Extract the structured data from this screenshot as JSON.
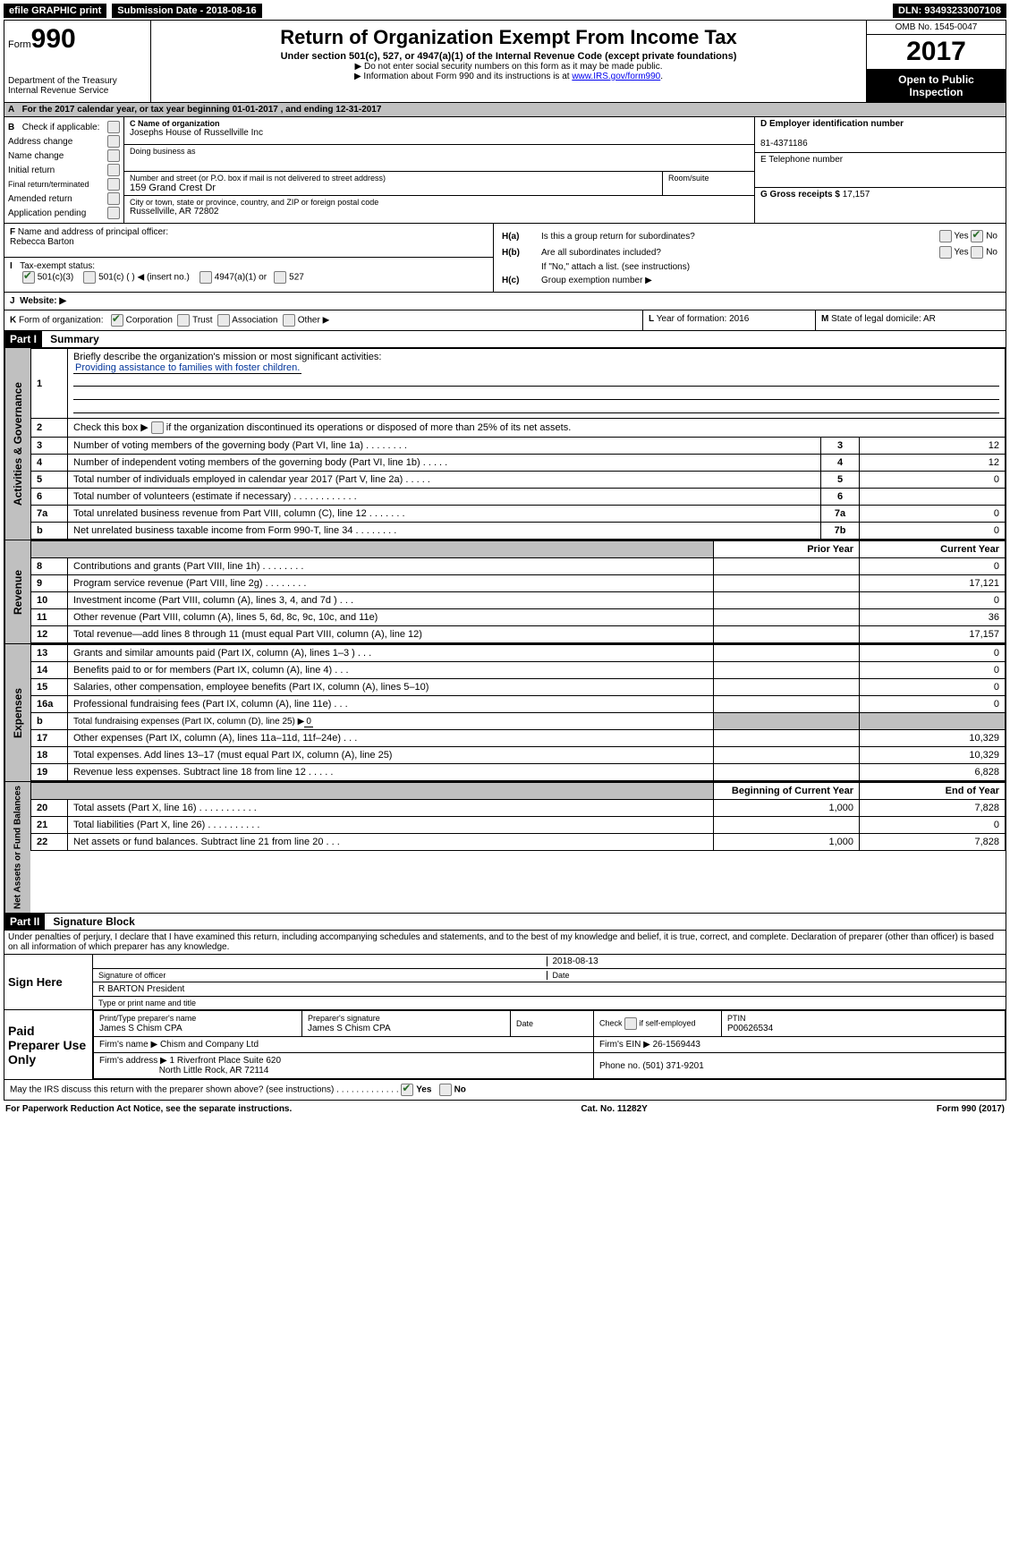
{
  "topbar": {
    "efile": "efile GRAPHIC print",
    "submission_label": "Submission Date - ",
    "submission_date": "2018-08-16",
    "dln_label": "DLN: ",
    "dln": "93493233007108"
  },
  "header": {
    "form_prefix": "Form",
    "form_number": "990",
    "dept1": "Department of the Treasury",
    "dept2": "Internal Revenue Service",
    "title": "Return of Organization Exempt From Income Tax",
    "subtitle": "Under section 501(c), 527, or 4947(a)(1) of the Internal Revenue Code (except private foundations)",
    "note1": "Do not enter social security numbers on this form as it may be made public.",
    "note2_pre": "Information about Form 990 and its instructions is at ",
    "note2_link": "www.IRS.gov/form990",
    "note2_post": ".",
    "omb": "OMB No. 1545-0047",
    "year": "2017",
    "inspection": "Open to Public Inspection"
  },
  "row_a": {
    "label": "A",
    "text_pre": "For the 2017 calendar year, or tax year beginning ",
    "begin": "01-01-2017",
    "text_mid": " , and ending ",
    "end": "12-31-2017"
  },
  "col_b": {
    "label": "B",
    "check_label": "Check if applicable:",
    "items": [
      "Address change",
      "Name change",
      "Initial return",
      "Final return/terminated",
      "Amended return",
      "Application pending"
    ]
  },
  "col_c": {
    "name_label": "C Name of organization",
    "name": "Josephs House of Russellville Inc",
    "dba_label": "Doing business as",
    "dba": "",
    "addr_label": "Number and street (or P.O. box if mail is not delivered to street address)",
    "room_label": "Room/suite",
    "addr": "159 Grand Crest Dr",
    "city_label": "City or town, state or province, country, and ZIP or foreign postal code",
    "city": "Russellville, AR  72802"
  },
  "col_d": {
    "d_label": "D Employer identification number",
    "ein": "81-4371186",
    "e_label": "E Telephone number",
    "phone": "",
    "g_label": "G Gross receipts $ ",
    "g_val": "17,157"
  },
  "row_f": {
    "label": "F",
    "text": "Name and address of principal officer:",
    "name": "Rebecca Barton"
  },
  "row_h": {
    "ha_label": "H(a)",
    "ha_text": "Is this a group return for subordinates?",
    "ha_yes": "Yes",
    "ha_no": "No",
    "hb_label": "H(b)",
    "hb_text": "Are all subordinates included?",
    "hb_yes": "Yes",
    "hb_no": "No",
    "hb_note": "If \"No,\" attach a list. (see instructions)",
    "hc_label": "H(c)",
    "hc_text": "Group exemption number ▶"
  },
  "row_i": {
    "label": "I",
    "text": "Tax-exempt status:",
    "opt1": "501(c)(3)",
    "opt2": "501(c) (    ) ◀ (insert no.)",
    "opt3": "4947(a)(1) or",
    "opt4": "527"
  },
  "row_j": {
    "label": "J",
    "text": "Website: ▶"
  },
  "row_k": {
    "label": "K",
    "text": "Form of organization:",
    "opts": [
      "Corporation",
      "Trust",
      "Association",
      "Other ▶"
    ],
    "l_label": "L",
    "l_text": "Year of formation: ",
    "l_val": "2016",
    "m_label": "M",
    "m_text": "State of legal domicile: ",
    "m_val": "AR"
  },
  "part1": {
    "header": "Part I",
    "title": "Summary"
  },
  "governance": {
    "vert": "Activities & Governance",
    "line1_num": "1",
    "line1": "Briefly describe the organization's mission or most significant activities:",
    "mission": "Providing assistance to families with foster children.",
    "line2_num": "2",
    "line2": "Check this box ▶        if the organization discontinued its operations or disposed of more than 25% of its net assets.",
    "line3_num": "3",
    "line3": "Number of voting members of the governing body (Part VI, line 1a)   .   .   .   .   .   .   .   .",
    "line3_col": "3",
    "line3_val": "12",
    "line4_num": "4",
    "line4": "Number of independent voting members of the governing body (Part VI, line 1b)   .   .   .   .   .",
    "line4_col": "4",
    "line4_val": "12",
    "line5_num": "5",
    "line5": "Total number of individuals employed in calendar year 2017 (Part V, line 2a)   .   .   .   .   .",
    "line5_col": "5",
    "line5_val": "0",
    "line6_num": "6",
    "line6": "Total number of volunteers (estimate if necessary)   .   .   .   .   .   .   .   .   .   .   .   .",
    "line6_col": "6",
    "line6_val": "",
    "line7a_num": "7a",
    "line7a": "Total unrelated business revenue from Part VIII, column (C), line 12   .   .   .   .   .   .   .",
    "line7a_col": "7a",
    "line7a_val": "0",
    "line7b_num": "b",
    "line7b": "Net unrelated business taxable income from Form 990-T, line 34   .   .   .   .   .   .   .   .",
    "line7b_col": "7b",
    "line7b_val": "0"
  },
  "revenue": {
    "vert": "Revenue",
    "hdr_prior": "Prior Year",
    "hdr_current": "Current Year",
    "rows": [
      {
        "n": "8",
        "d": "Contributions and grants (Part VIII, line 1h)   .   .   .   .   .   .   .   .",
        "p": "",
        "c": "0"
      },
      {
        "n": "9",
        "d": "Program service revenue (Part VIII, line 2g)   .   .   .   .   .   .   .   .",
        "p": "",
        "c": "17,121"
      },
      {
        "n": "10",
        "d": "Investment income (Part VIII, column (A), lines 3, 4, and 7d )   .   .   .",
        "p": "",
        "c": "0"
      },
      {
        "n": "11",
        "d": "Other revenue (Part VIII, column (A), lines 5, 6d, 8c, 9c, 10c, and 11e)",
        "p": "",
        "c": "36"
      },
      {
        "n": "12",
        "d": "Total revenue—add lines 8 through 11 (must equal Part VIII, column (A), line 12)",
        "p": "",
        "c": "17,157"
      }
    ]
  },
  "expenses": {
    "vert": "Expenses",
    "rows": [
      {
        "n": "13",
        "d": "Grants and similar amounts paid (Part IX, column (A), lines 1–3 )   .   .   .",
        "p": "",
        "c": "0"
      },
      {
        "n": "14",
        "d": "Benefits paid to or for members (Part IX, column (A), line 4)   .   .   .",
        "p": "",
        "c": "0"
      },
      {
        "n": "15",
        "d": "Salaries, other compensation, employee benefits (Part IX, column (A), lines 5–10)",
        "p": "",
        "c": "0"
      },
      {
        "n": "16a",
        "d": "Professional fundraising fees (Part IX, column (A), line 11e)   .   .   .",
        "p": "",
        "c": "0"
      }
    ],
    "line_b_num": "b",
    "line_b": "Total fundraising expenses (Part IX, column (D), line 25) ▶",
    "line_b_val": "0",
    "rows2": [
      {
        "n": "17",
        "d": "Other expenses (Part IX, column (A), lines 11a–11d, 11f–24e)   .   .   .",
        "p": "",
        "c": "10,329"
      },
      {
        "n": "18",
        "d": "Total expenses. Add lines 13–17 (must equal Part IX, column (A), line 25)",
        "p": "",
        "c": "10,329"
      },
      {
        "n": "19",
        "d": "Revenue less expenses. Subtract line 18 from line 12   .   .   .   .   .",
        "p": "",
        "c": "6,828"
      }
    ]
  },
  "netassets": {
    "vert": "Net Assets or Fund Balances",
    "hdr_begin": "Beginning of Current Year",
    "hdr_end": "End of Year",
    "rows": [
      {
        "n": "20",
        "d": "Total assets (Part X, line 16)   .   .   .   .   .   .   .   .   .   .   .",
        "p": "1,000",
        "c": "7,828"
      },
      {
        "n": "21",
        "d": "Total liabilities (Part X, line 26)   .   .   .   .   .   .   .   .   .   .",
        "p": "",
        "c": "0"
      },
      {
        "n": "22",
        "d": "Net assets or fund balances. Subtract line 21 from line 20   .   .   .",
        "p": "1,000",
        "c": "7,828"
      }
    ]
  },
  "part2": {
    "header": "Part II",
    "title": "Signature Block"
  },
  "penalties": "Under penalties of perjury, I declare that I have examined this return, including accompanying schedules and statements, and to the best of my knowledge and belief, it is true, correct, and complete. Declaration of preparer (other than officer) is based on all information of which preparer has any knowledge.",
  "sign": {
    "label": "Sign Here",
    "sig_officer": "Signature of officer",
    "date_label": "Date",
    "date": "2018-08-13",
    "name": "R BARTON  President",
    "name_label": "Type or print name and title"
  },
  "prep": {
    "label": "Paid Preparer Use Only",
    "pname_label": "Print/Type preparer's name",
    "pname": "James S Chism CPA",
    "psig_label": "Preparer's signature",
    "psig": "James S Chism CPA",
    "pdate_label": "Date",
    "self_label": "Check        if self-employed",
    "ptin_label": "PTIN",
    "ptin": "P00626534",
    "firm_label": "Firm's name    ▶",
    "firm": "Chism and Company Ltd",
    "fein_label": "Firm's EIN ▶",
    "fein": "26-1569443",
    "faddr_label": "Firm's address ▶",
    "faddr1": "1 Riverfront Place Suite 620",
    "faddr2": "North Little Rock, AR  72114",
    "fphone_label": "Phone no. ",
    "fphone": "(501) 371-9201"
  },
  "discuss": {
    "text": "May the IRS discuss this return with the preparer shown above? (see instructions)   .   .   .   .   .   .   .   .   .   .   .   .   .",
    "yes": "Yes",
    "no": "No"
  },
  "footer": {
    "left": "For Paperwork Reduction Act Notice, see the separate instructions.",
    "mid": "Cat. No. 11282Y",
    "right": "Form 990 (2017)"
  }
}
